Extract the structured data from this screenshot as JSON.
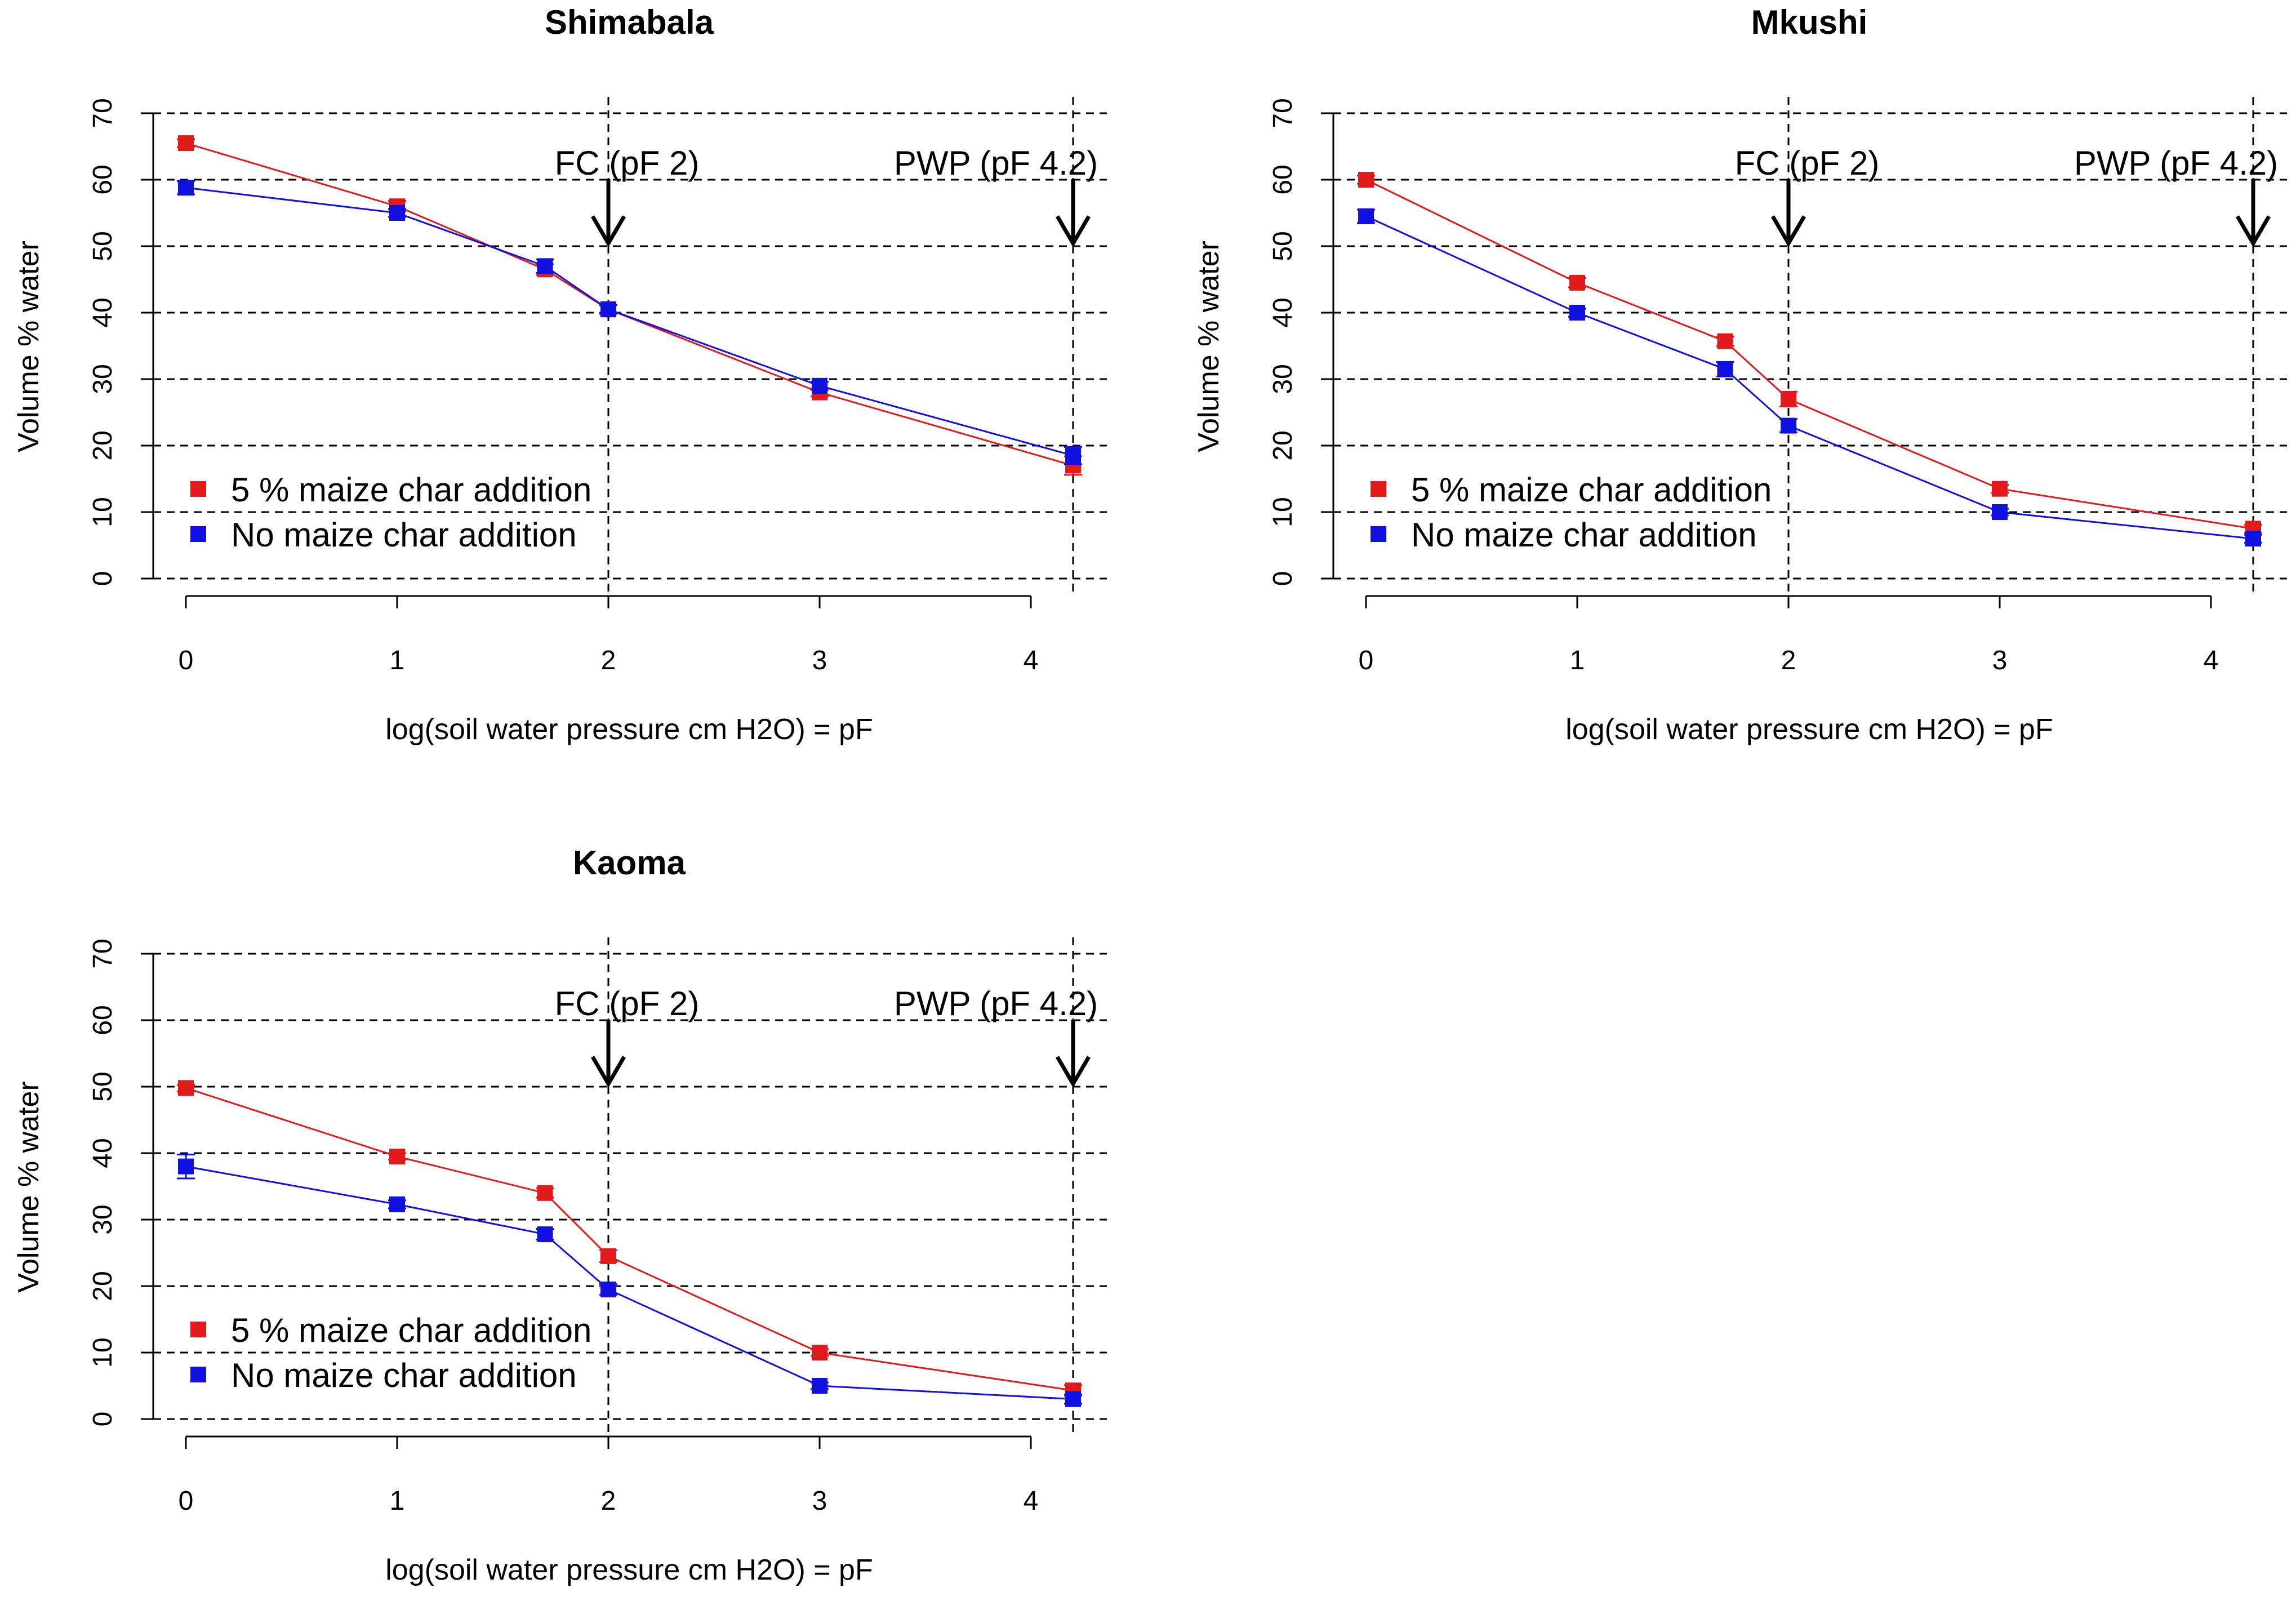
{
  "chart_data": [
    {
      "type": "line",
      "title": "Shimabala",
      "xlabel": "log(soil water pressure cm H2O) = pF",
      "ylabel": "Volume % water",
      "xlim": [
        0,
        4.2
      ],
      "ylim": [
        0,
        70
      ],
      "x_ticks": [
        "0",
        "1",
        "2",
        "3",
        "4"
      ],
      "y_ticks": [
        "0",
        "10",
        "20",
        "30",
        "40",
        "50",
        "60",
        "70"
      ],
      "grid": true,
      "annotations": [
        "FC (pF 2)",
        "PWP (pF 4.2)"
      ],
      "x": [
        0,
        1,
        1.7,
        2,
        3,
        4.2
      ],
      "series": [
        {
          "name": "5 % maize char addition",
          "color": "#e31a1c",
          "values": [
            65.5,
            56.0,
            46.5,
            40.5,
            28.0,
            17.0
          ],
          "err": [
            0.6,
            0.8,
            0.8,
            0.7,
            0.6,
            1.4
          ]
        },
        {
          "name": "No maize char addition",
          "color": "#1010e0",
          "values": [
            58.8,
            55.0,
            47.0,
            40.5,
            29.0,
            18.5
          ],
          "err": [
            1.0,
            0.6,
            1.0,
            0.6,
            0.6,
            1.3
          ]
        }
      ]
    },
    {
      "type": "line",
      "title": "Mkushi",
      "xlabel": "log(soil water pressure cm H2O) = pF",
      "ylabel": "Volume % water",
      "xlim": [
        0,
        4.2
      ],
      "ylim": [
        0,
        70
      ],
      "x_ticks": [
        "0",
        "1",
        "2",
        "3",
        "4"
      ],
      "y_ticks": [
        "0",
        "10",
        "20",
        "30",
        "40",
        "50",
        "60",
        "70"
      ],
      "grid": true,
      "annotations": [
        "FC (pF 2)",
        "PWP (pF 4.2)"
      ],
      "x": [
        0,
        1,
        1.7,
        2,
        3,
        4.2
      ],
      "series": [
        {
          "name": "5 % maize char addition",
          "color": "#e31a1c",
          "values": [
            60.0,
            44.5,
            35.7,
            27.0,
            13.5,
            7.5
          ],
          "err": [
            0.6,
            0.7,
            0.7,
            1.1,
            0.6,
            0.6
          ]
        },
        {
          "name": "No maize char addition",
          "color": "#1010e0",
          "values": [
            54.5,
            40.0,
            31.5,
            23.0,
            10.0,
            6.0
          ],
          "err": [
            1.0,
            0.6,
            1.1,
            1.0,
            0.5,
            0.6
          ]
        }
      ]
    },
    {
      "type": "line",
      "title": "Kaoma",
      "xlabel": "log(soil water pressure cm H2O) = pF",
      "ylabel": "Volume % water",
      "xlim": [
        0,
        4.2
      ],
      "ylim": [
        0,
        70
      ],
      "x_ticks": [
        "0",
        "1",
        "2",
        "3",
        "4"
      ],
      "y_ticks": [
        "0",
        "10",
        "20",
        "30",
        "40",
        "50",
        "60",
        "70"
      ],
      "grid": true,
      "annotations": [
        "FC (pF 2)",
        "PWP (pF 4.2)"
      ],
      "x": [
        0,
        1,
        1.7,
        2,
        3,
        4.2
      ],
      "series": [
        {
          "name": "5 % maize char addition",
          "color": "#e31a1c",
          "values": [
            49.8,
            39.5,
            34.0,
            24.5,
            10.0,
            4.3
          ],
          "err": [
            0.5,
            0.5,
            0.7,
            0.9,
            0.5,
            0.8
          ]
        },
        {
          "name": "No maize char addition",
          "color": "#1010e0",
          "values": [
            38.0,
            32.3,
            27.8,
            19.5,
            5.0,
            3.0
          ],
          "err": [
            1.8,
            0.6,
            0.8,
            0.8,
            0.5,
            0.7
          ]
        }
      ]
    }
  ]
}
